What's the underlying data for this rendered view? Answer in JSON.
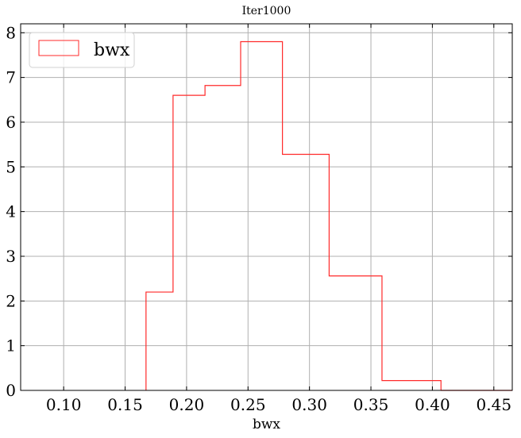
{
  "chart_data": {
    "type": "histogram",
    "title": "Iter1000",
    "xlabel": "bwx",
    "ylabel": "",
    "xlim": [
      0.065,
      0.465
    ],
    "ylim": [
      0,
      8.2
    ],
    "xticks": [
      0.1,
      0.15,
      0.2,
      0.25,
      0.3,
      0.35,
      0.4,
      0.45
    ],
    "xtick_labels": [
      "0.10",
      "0.15",
      "0.20",
      "0.25",
      "0.30",
      "0.35",
      "0.40",
      "0.45"
    ],
    "yticks": [
      0,
      1,
      2,
      3,
      4,
      5,
      6,
      7,
      8
    ],
    "ytick_labels": [
      "0",
      "1",
      "2",
      "3",
      "4",
      "5",
      "6",
      "7",
      "8"
    ],
    "grid": true,
    "legend_position": "top-left",
    "series": [
      {
        "name": "bwx",
        "color": "#ff2a2a",
        "histtype": "step",
        "bin_edges": [
          0.167,
          0.189,
          0.215,
          0.244,
          0.278,
          0.316,
          0.359,
          0.407
        ],
        "values": [
          2.2,
          6.6,
          6.82,
          7.8,
          5.28,
          2.56,
          0.22
        ]
      }
    ]
  }
}
